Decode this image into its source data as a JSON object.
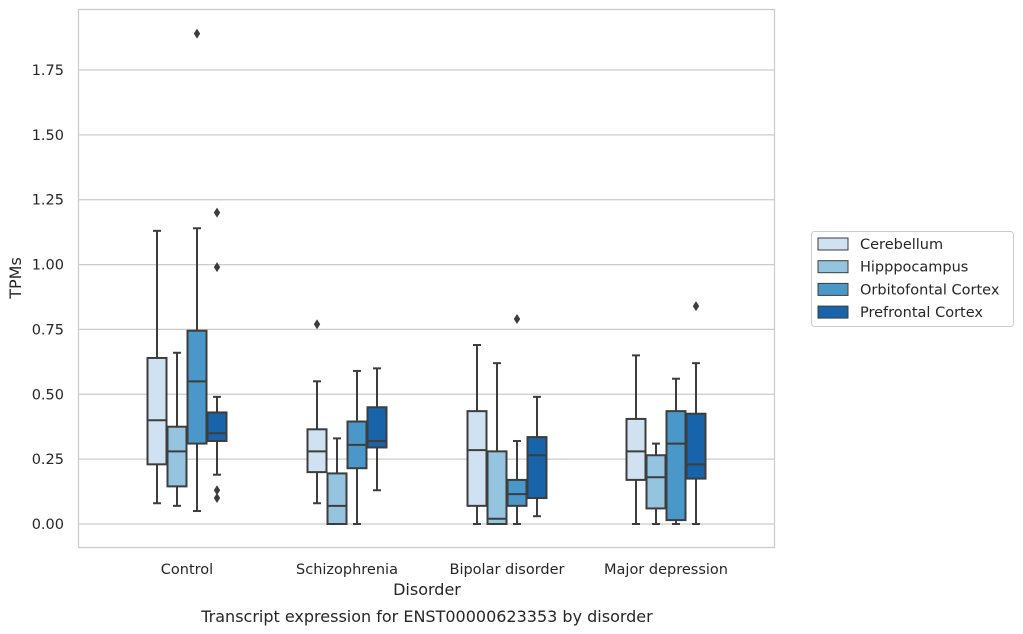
{
  "caption": "Transcript expression for ENST00000623353 by disorder",
  "chart_data": {
    "type": "box",
    "xlabel": "Disorder",
    "ylabel": "TPMs",
    "ylim": [
      -0.09,
      1.98
    ],
    "yticks": [
      0.0,
      0.25,
      0.5,
      0.75,
      1.0,
      1.25,
      1.5,
      1.75
    ],
    "ytick_labels": [
      "0.00",
      "0.25",
      "0.50",
      "0.75",
      "1.00",
      "1.25",
      "1.50",
      "1.75"
    ],
    "grid": "horizontal",
    "legend_position": "right",
    "categories": [
      "Control",
      "Schizophrenia",
      "Bipolar disorder",
      "Major depression"
    ],
    "series": [
      {
        "name": "Cerebellum",
        "color": "#d0e1f2",
        "boxes": [
          {
            "whislo": 0.08,
            "q1": 0.23,
            "med": 0.4,
            "q3": 0.64,
            "whishi": 1.13,
            "fliers": []
          },
          {
            "whislo": 0.08,
            "q1": 0.2,
            "med": 0.28,
            "q3": 0.365,
            "whishi": 0.55,
            "fliers": [
              0.77
            ]
          },
          {
            "whislo": 0.0,
            "q1": 0.07,
            "med": 0.285,
            "q3": 0.435,
            "whishi": 0.69,
            "fliers": []
          },
          {
            "whislo": 0.0,
            "q1": 0.17,
            "med": 0.28,
            "q3": 0.405,
            "whishi": 0.65,
            "fliers": []
          }
        ]
      },
      {
        "name": "Hipppocampus",
        "color": "#94c4df",
        "boxes": [
          {
            "whislo": 0.07,
            "q1": 0.145,
            "med": 0.28,
            "q3": 0.375,
            "whishi": 0.66,
            "fliers": []
          },
          {
            "whislo": 0.0,
            "q1": 0.0,
            "med": 0.07,
            "q3": 0.195,
            "whishi": 0.33,
            "fliers": []
          },
          {
            "whislo": 0.0,
            "q1": 0.0,
            "med": 0.02,
            "q3": 0.28,
            "whishi": 0.62,
            "fliers": []
          },
          {
            "whislo": 0.0,
            "q1": 0.06,
            "med": 0.18,
            "q3": 0.265,
            "whishi": 0.31,
            "fliers": []
          }
        ]
      },
      {
        "name": "Orbitofontal Cortex",
        "color": "#4a98c9",
        "boxes": [
          {
            "whislo": 0.05,
            "q1": 0.31,
            "med": 0.55,
            "q3": 0.745,
            "whishi": 1.14,
            "fliers": [
              1.89
            ]
          },
          {
            "whislo": 0.0,
            "q1": 0.215,
            "med": 0.305,
            "q3": 0.395,
            "whishi": 0.59,
            "fliers": []
          },
          {
            "whislo": 0.0,
            "q1": 0.07,
            "med": 0.115,
            "q3": 0.17,
            "whishi": 0.32,
            "fliers": [
              0.79
            ]
          },
          {
            "whislo": 0.0,
            "q1": 0.015,
            "med": 0.31,
            "q3": 0.435,
            "whishi": 0.56,
            "fliers": []
          }
        ]
      },
      {
        "name": "Prefrontal Cortex",
        "color": "#1764ab",
        "boxes": [
          {
            "whislo": 0.19,
            "q1": 0.32,
            "med": 0.35,
            "q3": 0.43,
            "whishi": 0.49,
            "fliers": [
              1.2,
              0.99,
              0.13,
              0.1
            ]
          },
          {
            "whislo": 0.13,
            "q1": 0.295,
            "med": 0.32,
            "q3": 0.45,
            "whishi": 0.6,
            "fliers": []
          },
          {
            "whislo": 0.03,
            "q1": 0.1,
            "med": 0.265,
            "q3": 0.335,
            "whishi": 0.49,
            "fliers": []
          },
          {
            "whislo": 0.0,
            "q1": 0.175,
            "med": 0.23,
            "q3": 0.425,
            "whishi": 0.62,
            "fliers": [
              0.84
            ]
          }
        ]
      }
    ]
  }
}
